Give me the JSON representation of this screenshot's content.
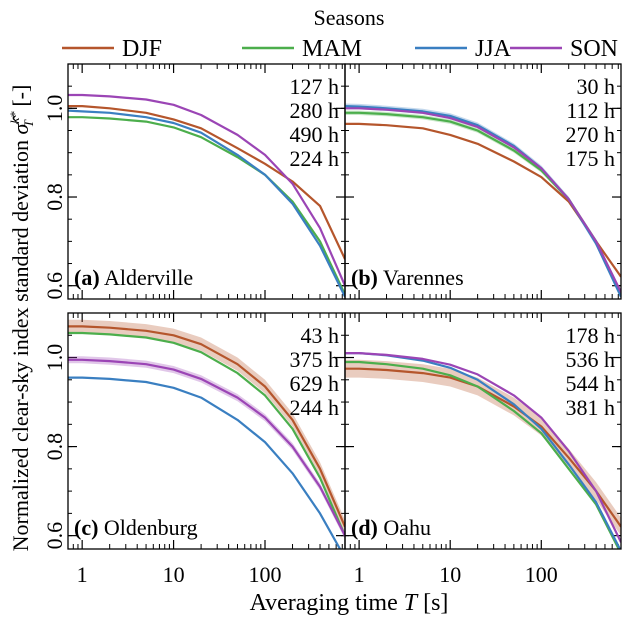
{
  "legend": {
    "title": "Seasons",
    "entries": [
      {
        "name": "DJF",
        "color": "#b5562c"
      },
      {
        "name": "MAM",
        "color": "#4cae4c"
      },
      {
        "name": "JJA",
        "color": "#3a7fc1"
      },
      {
        "name": "SON",
        "color": "#9b45b5"
      }
    ]
  },
  "xlabel": "Averaging time T [s]",
  "ylabel": "Normalized clear-sky index standard deviation σ̂_T^{k*} [-]",
  "chart_data": {
    "type": "line",
    "xscale": "log",
    "xlim": [
      0.7,
      750
    ],
    "ylim": [
      0.57,
      1.1
    ],
    "xticks": [
      1,
      10,
      100
    ],
    "xtick_labels": [
      "1",
      "10",
      "100"
    ],
    "yticks": [
      0.6,
      0.8,
      1.0
    ],
    "ytick_labels": [
      "0.6",
      "0.8",
      "1.0"
    ],
    "x": [
      0.7,
      1,
      2,
      5,
      10,
      20,
      50,
      100,
      200,
      400,
      750
    ],
    "panels": [
      {
        "letter": "(a)",
        "name": "Alderville",
        "series": [
          {
            "name": "DJF",
            "label": "127 h",
            "values": [
              1.005,
              1.005,
              1.0,
              0.99,
              0.975,
              0.955,
              0.91,
              0.875,
              0.835,
              0.78,
              0.66
            ],
            "band": 0
          },
          {
            "name": "MAM",
            "label": "280 h",
            "values": [
              0.98,
              0.98,
              0.977,
              0.97,
              0.957,
              0.935,
              0.89,
              0.85,
              0.79,
              0.7,
              0.58
            ],
            "band": 0
          },
          {
            "name": "JJA",
            "label": "490 h",
            "values": [
              0.995,
              0.993,
              0.99,
              0.98,
              0.967,
              0.945,
              0.895,
              0.85,
              0.785,
              0.69,
              0.575
            ],
            "band": 0
          },
          {
            "name": "SON",
            "label": "224 h",
            "values": [
              1.03,
              1.03,
              1.027,
              1.02,
              1.008,
              0.985,
              0.94,
              0.895,
              0.83,
              0.73,
              0.6
            ],
            "band": 0
          }
        ]
      },
      {
        "letter": "(b)",
        "name": "Varennes",
        "series": [
          {
            "name": "DJF",
            "label": "30 h",
            "values": [
              0.965,
              0.965,
              0.962,
              0.955,
              0.94,
              0.92,
              0.88,
              0.845,
              0.79,
              0.7,
              0.62
            ],
            "band": 0
          },
          {
            "name": "MAM",
            "label": "112 h",
            "values": [
              0.99,
              0.99,
              0.987,
              0.98,
              0.97,
              0.95,
              0.905,
              0.86,
              0.795,
              0.7,
              0.58
            ],
            "band": 0.005
          },
          {
            "name": "JJA",
            "label": "270 h",
            "values": [
              1.005,
              1.004,
              1.0,
              0.993,
              0.983,
              0.962,
              0.915,
              0.865,
              0.795,
              0.695,
              0.575
            ],
            "band": 0.006
          },
          {
            "name": "SON",
            "label": "175 h",
            "values": [
              1.0,
              1.0,
              0.997,
              0.99,
              0.978,
              0.958,
              0.912,
              0.865,
              0.795,
              0.7,
              0.585
            ],
            "band": 0
          }
        ]
      },
      {
        "letter": "(c)",
        "name": "Oldenburg",
        "series": [
          {
            "name": "DJF",
            "label": "43 h",
            "values": [
              1.07,
              1.07,
              1.067,
              1.06,
              1.05,
              1.03,
              0.985,
              0.935,
              0.86,
              0.75,
              0.62
            ],
            "band": 0.015
          },
          {
            "name": "MAM",
            "label": "375 h",
            "values": [
              1.055,
              1.055,
              1.052,
              1.045,
              1.033,
              1.012,
              0.965,
              0.915,
              0.84,
              0.73,
              0.6
            ],
            "band": 0
          },
          {
            "name": "JJA",
            "label": "629 h",
            "values": [
              0.955,
              0.955,
              0.952,
              0.945,
              0.932,
              0.91,
              0.86,
              0.81,
              0.74,
              0.65,
              0.55
            ],
            "band": 0
          },
          {
            "name": "SON",
            "label": "244 h",
            "values": [
              0.995,
              0.995,
              0.992,
              0.985,
              0.973,
              0.952,
              0.91,
              0.865,
              0.8,
              0.71,
              0.6
            ],
            "band": 0.008
          }
        ]
      },
      {
        "letter": "(d)",
        "name": "Oahu",
        "series": [
          {
            "name": "DJF",
            "label": "178 h",
            "values": [
              0.975,
              0.975,
              0.972,
              0.965,
              0.955,
              0.935,
              0.89,
              0.845,
              0.775,
              0.7,
              0.62
            ],
            "band": 0.02
          },
          {
            "name": "MAM",
            "label": "536 h",
            "values": [
              0.99,
              0.99,
              0.985,
              0.975,
              0.96,
              0.935,
              0.88,
              0.83,
              0.75,
              0.67,
              0.56
            ],
            "band": 0
          },
          {
            "name": "JJA",
            "label": "544 h",
            "values": [
              1.01,
              1.01,
              1.005,
              0.993,
              0.977,
              0.95,
              0.895,
              0.84,
              0.76,
              0.675,
              0.565
            ],
            "band": 0
          },
          {
            "name": "SON",
            "label": "381 h",
            "values": [
              1.01,
              1.01,
              1.006,
              0.997,
              0.984,
              0.962,
              0.915,
              0.865,
              0.79,
              0.7,
              0.585
            ],
            "band": 0
          }
        ]
      }
    ]
  }
}
